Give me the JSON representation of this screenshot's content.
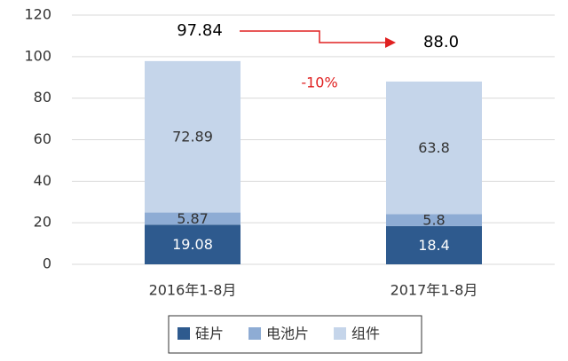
{
  "chart_data": {
    "type": "stacked_bar",
    "categories": [
      "2016年1-8月",
      "2017年1-8月"
    ],
    "series": [
      {
        "name": "硅片",
        "color": "#2e5a8e",
        "values": [
          19.08,
          18.4
        ]
      },
      {
        "name": "电池片",
        "color": "#8eacd4",
        "values": [
          5.87,
          5.8
        ]
      },
      {
        "name": "组件",
        "color": "#c5d5ea",
        "values": [
          72.89,
          63.8
        ]
      }
    ],
    "totals": {
      "values": [
        97.84,
        88.0
      ],
      "value_labels": [
        "97.84",
        "88.0"
      ]
    },
    "annotation": "-10%",
    "ylim": [
      0,
      120
    ],
    "yticks": [
      0,
      20,
      40,
      60,
      80,
      100,
      120
    ],
    "grid": true
  }
}
